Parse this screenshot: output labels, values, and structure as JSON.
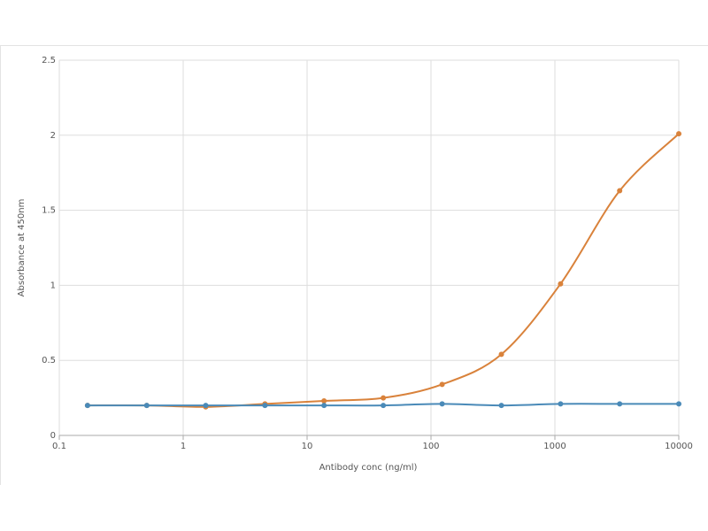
{
  "chart_data": {
    "type": "line",
    "x_label": "Antibody conc (ng/ml)",
    "y_label": "Absorbance at 450nm",
    "x": [
      0.169,
      0.508,
      1.52,
      4.57,
      13.7,
      41.2,
      123,
      370,
      1111,
      3333,
      10000
    ],
    "series": [
      {
        "color": "#d9823b",
        "values": [
          0.2,
          0.2,
          0.19,
          0.21,
          0.23,
          0.25,
          0.34,
          0.54,
          1.01,
          1.63,
          2.01
        ]
      },
      {
        "color": "#4a8ab8",
        "values": [
          0.2,
          0.2,
          0.2,
          0.2,
          0.2,
          0.2,
          0.21,
          0.2,
          0.21,
          0.21,
          0.21
        ]
      }
    ],
    "xscale": "log",
    "xlim": [
      0.1,
      10000
    ],
    "xticks": [
      0.1,
      1,
      10,
      100,
      1000,
      10000
    ],
    "ylim": [
      0,
      2.5
    ],
    "yticks": [
      0,
      0.5,
      1,
      1.5,
      2,
      2.5
    ],
    "grid": true
  }
}
